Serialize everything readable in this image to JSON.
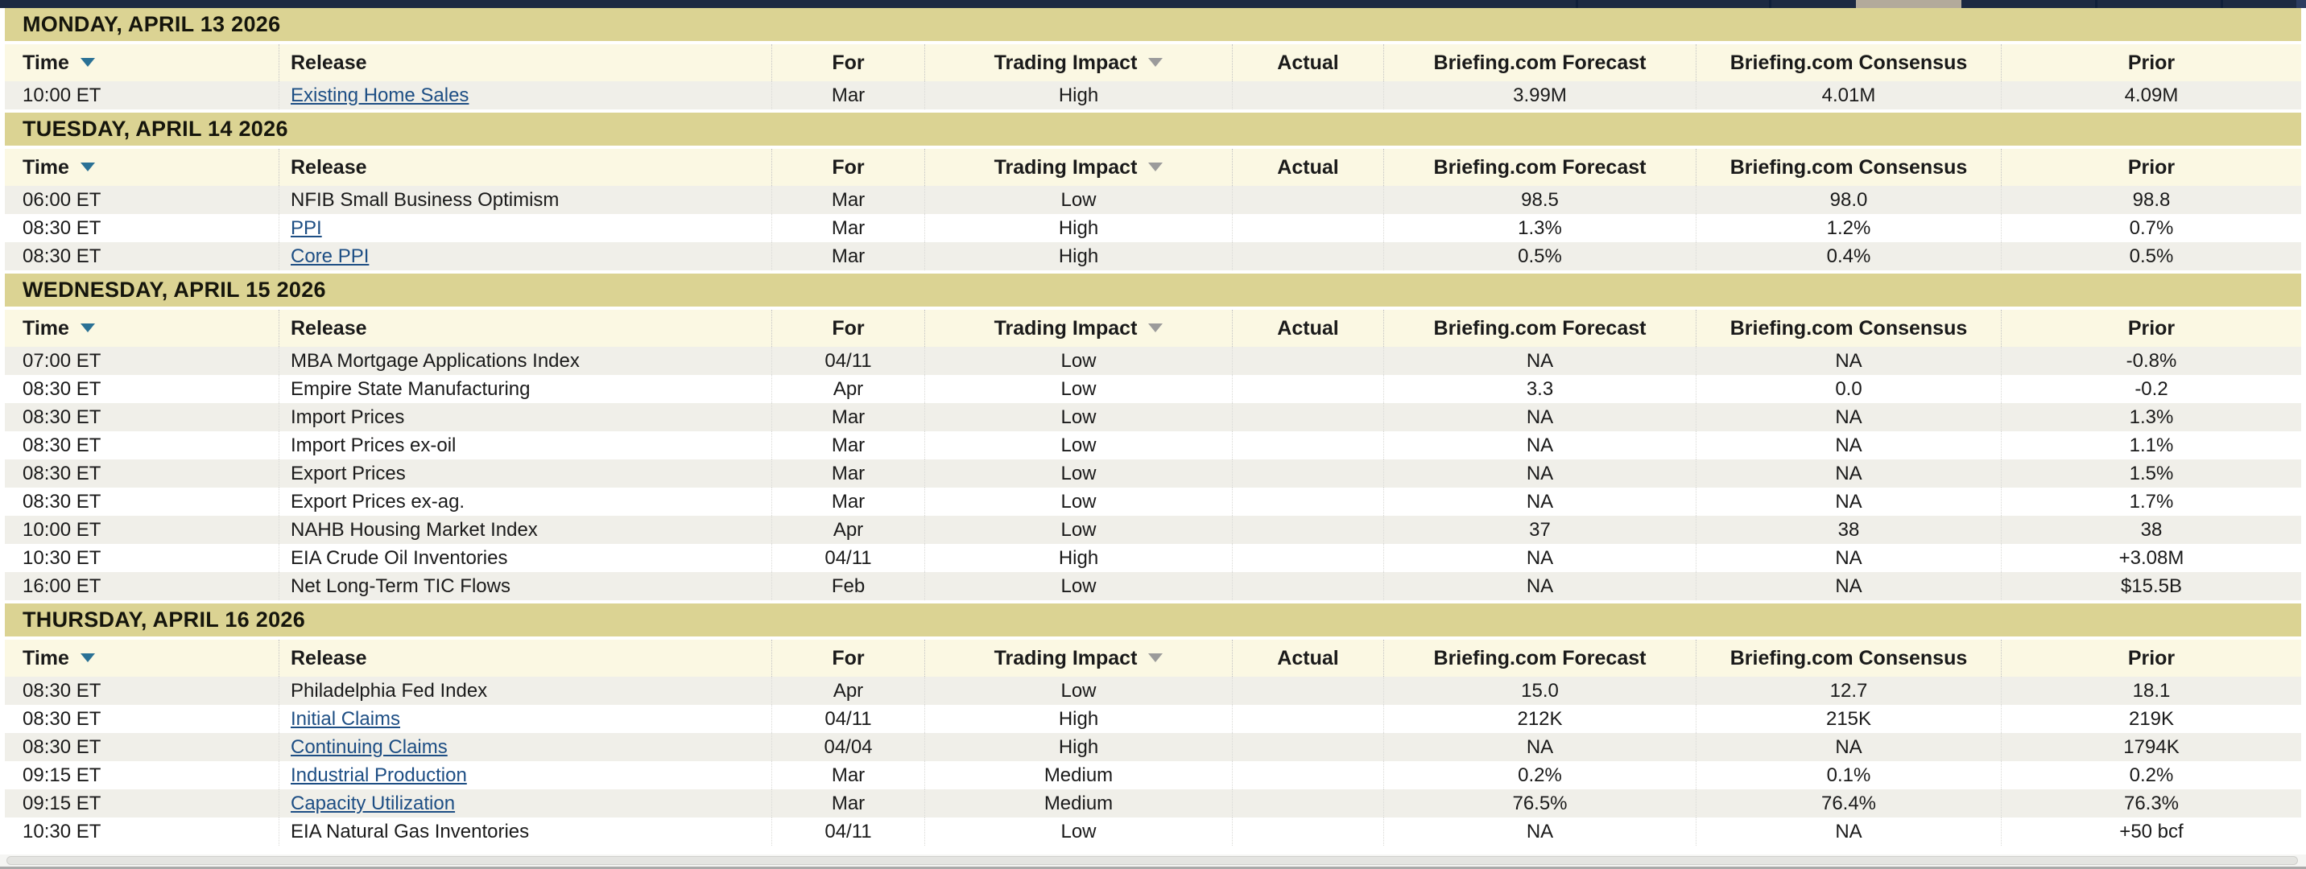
{
  "columns": [
    {
      "label": "Time",
      "sortable": true
    },
    {
      "label": "Release",
      "sortable": false
    },
    {
      "label": "For",
      "sortable": false
    },
    {
      "label": "Trading Impact",
      "sortable": true
    },
    {
      "label": "Actual",
      "sortable": false
    },
    {
      "label": "Briefing.com Forecast",
      "sortable": false
    },
    {
      "label": "Briefing.com Consensus",
      "sortable": false
    },
    {
      "label": "Prior",
      "sortable": false
    }
  ],
  "sections": [
    {
      "date_header": "MONDAY, APRIL 13 2026",
      "rows": [
        {
          "time": "10:00 ET",
          "release": "Existing Home Sales",
          "link": true,
          "for": "Mar",
          "impact": "High",
          "actual": "",
          "forecast": "3.99M",
          "consensus": "4.01M",
          "prior": "4.09M"
        }
      ]
    },
    {
      "date_header": "TUESDAY, APRIL 14 2026",
      "rows": [
        {
          "time": "06:00 ET",
          "release": "NFIB Small Business Optimism",
          "link": false,
          "for": "Mar",
          "impact": "Low",
          "actual": "",
          "forecast": "98.5",
          "consensus": "98.0",
          "prior": "98.8"
        },
        {
          "time": "08:30 ET",
          "release": "PPI",
          "link": true,
          "for": "Mar",
          "impact": "High",
          "actual": "",
          "forecast": "1.3%",
          "consensus": "1.2%",
          "prior": "0.7%"
        },
        {
          "time": "08:30 ET",
          "release": "Core PPI",
          "link": true,
          "for": "Mar",
          "impact": "High",
          "actual": "",
          "forecast": "0.5%",
          "consensus": "0.4%",
          "prior": "0.5%"
        }
      ]
    },
    {
      "date_header": "WEDNESDAY, APRIL 15 2026",
      "rows": [
        {
          "time": "07:00 ET",
          "release": "MBA Mortgage Applications Index",
          "link": false,
          "for": "04/11",
          "impact": "Low",
          "actual": "",
          "forecast": "NA",
          "consensus": "NA",
          "prior": "-0.8%"
        },
        {
          "time": "08:30 ET",
          "release": "Empire State Manufacturing",
          "link": false,
          "for": "Apr",
          "impact": "Low",
          "actual": "",
          "forecast": "3.3",
          "consensus": "0.0",
          "prior": "-0.2"
        },
        {
          "time": "08:30 ET",
          "release": "Import Prices",
          "link": false,
          "for": "Mar",
          "impact": "Low",
          "actual": "",
          "forecast": "NA",
          "consensus": "NA",
          "prior": "1.3%"
        },
        {
          "time": "08:30 ET",
          "release": "Import Prices ex-oil",
          "link": false,
          "for": "Mar",
          "impact": "Low",
          "actual": "",
          "forecast": "NA",
          "consensus": "NA",
          "prior": "1.1%"
        },
        {
          "time": "08:30 ET",
          "release": "Export Prices",
          "link": false,
          "for": "Mar",
          "impact": "Low",
          "actual": "",
          "forecast": "NA",
          "consensus": "NA",
          "prior": "1.5%"
        },
        {
          "time": "08:30 ET",
          "release": "Export Prices ex-ag.",
          "link": false,
          "for": "Mar",
          "impact": "Low",
          "actual": "",
          "forecast": "NA",
          "consensus": "NA",
          "prior": "1.7%"
        },
        {
          "time": "10:00 ET",
          "release": "NAHB Housing Market Index",
          "link": false,
          "for": "Apr",
          "impact": "Low",
          "actual": "",
          "forecast": "37",
          "consensus": "38",
          "prior": "38"
        },
        {
          "time": "10:30 ET",
          "release": "EIA Crude Oil Inventories",
          "link": false,
          "for": "04/11",
          "impact": "High",
          "actual": "",
          "forecast": "NA",
          "consensus": "NA",
          "prior": "+3.08M"
        },
        {
          "time": "16:00 ET",
          "release": "Net Long-Term TIC Flows",
          "link": false,
          "for": "Feb",
          "impact": "Low",
          "actual": "",
          "forecast": "NA",
          "consensus": "NA",
          "prior": "$15.5B"
        }
      ]
    },
    {
      "date_header": "THURSDAY, APRIL 16 2026",
      "rows": [
        {
          "time": "08:30 ET",
          "release": "Philadelphia Fed Index",
          "link": false,
          "for": "Apr",
          "impact": "Low",
          "actual": "",
          "forecast": "15.0",
          "consensus": "12.7",
          "prior": "18.1"
        },
        {
          "time": "08:30 ET",
          "release": "Initial Claims",
          "link": true,
          "for": "04/11",
          "impact": "High",
          "actual": "",
          "forecast": "212K",
          "consensus": "215K",
          "prior": "219K"
        },
        {
          "time": "08:30 ET",
          "release": "Continuing Claims",
          "link": true,
          "for": "04/04",
          "impact": "High",
          "actual": "",
          "forecast": "NA",
          "consensus": "NA",
          "prior": "1794K"
        },
        {
          "time": "09:15 ET",
          "release": "Industrial Production",
          "link": true,
          "for": "Mar",
          "impact": "Medium",
          "actual": "",
          "forecast": "0.2%",
          "consensus": "0.1%",
          "prior": "0.2%"
        },
        {
          "time": "09:15 ET",
          "release": "Capacity Utilization",
          "link": true,
          "for": "Mar",
          "impact": "Medium",
          "actual": "",
          "forecast": "76.5%",
          "consensus": "76.4%",
          "prior": "76.3%"
        },
        {
          "time": "10:30 ET",
          "release": "EIA Natural Gas Inventories",
          "link": false,
          "for": "04/11",
          "impact": "Low",
          "actual": "",
          "forecast": "NA",
          "consensus": "NA",
          "prior": "+50 bcf"
        }
      ]
    }
  ],
  "colors": {
    "top_bar": "#1c2942",
    "day_header_bg": "#dbd393",
    "column_header_bg": "#fbf8e3",
    "row_stripe_bg": "#f0efe9",
    "row_white_bg": "#ffffff",
    "link": "#1d4e84",
    "time_sort_arrow": "#2a7195",
    "impact_sort_arrow": "#9b9b9b",
    "text": "#1a1a1a"
  }
}
